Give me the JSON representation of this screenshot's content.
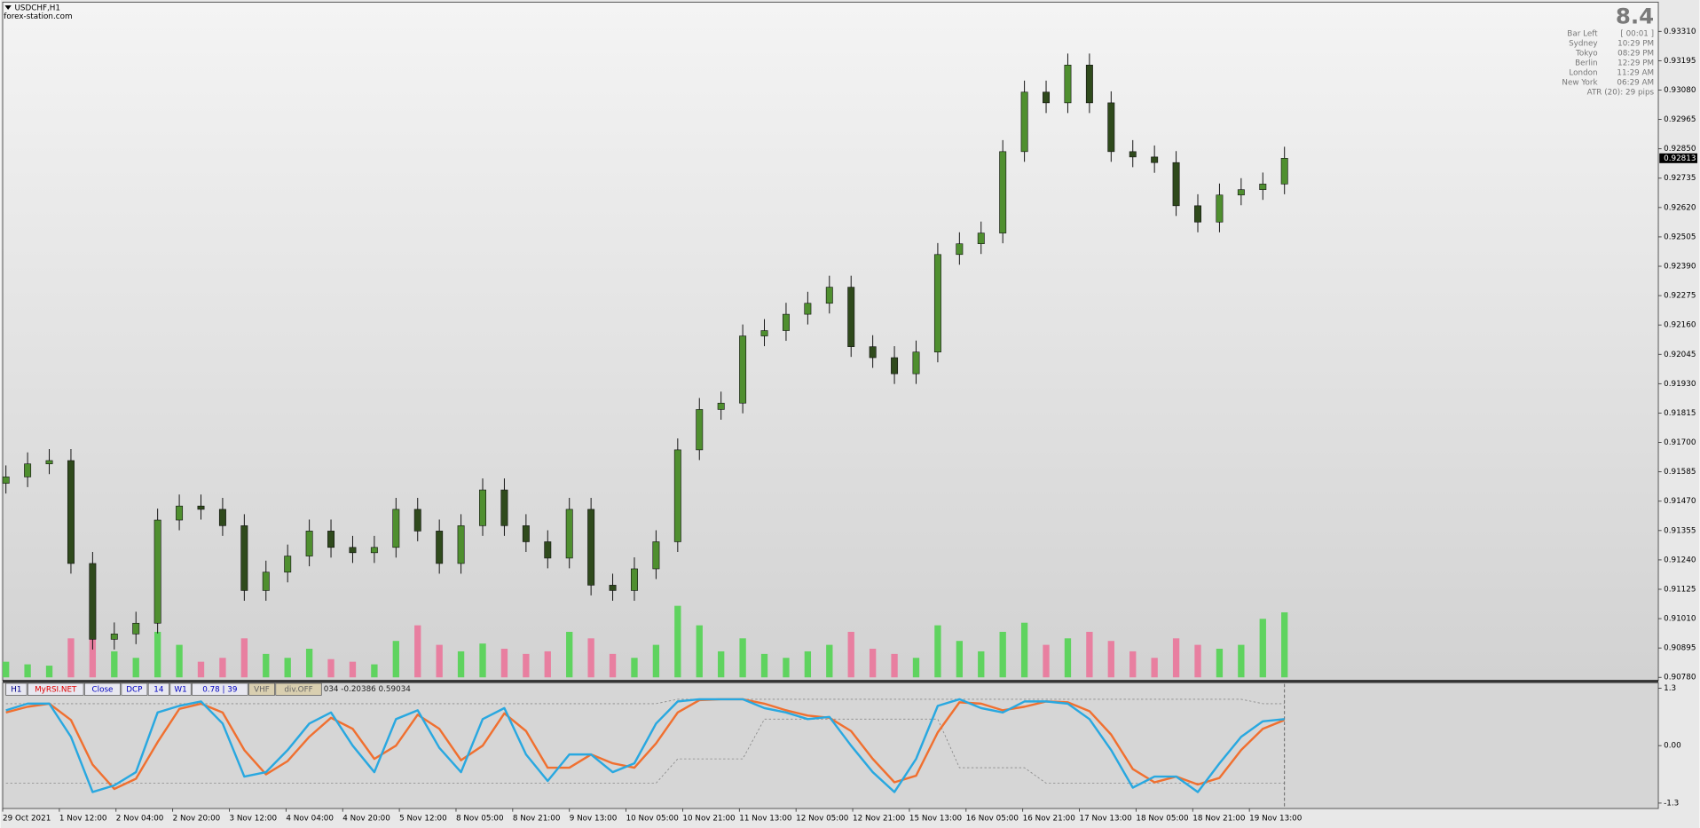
{
  "header": {
    "symbol": "USDCHF,H1",
    "site": "forex-station.com"
  },
  "info_panel": {
    "big_value": "8.4",
    "rows": [
      [
        "Bar Left",
        "[ 00:01 ]"
      ],
      [
        "Sydney",
        "10:29 PM"
      ],
      [
        "Tokyo",
        "08:29 PM"
      ],
      [
        "Berlin",
        "12:29 PM"
      ],
      [
        "London",
        "11:29 AM"
      ],
      [
        "New York",
        "06:29 AM"
      ]
    ],
    "atr": "ATR (20): 29 pips"
  },
  "indicator_bar": {
    "items": [
      "H1",
      "MyRSI.NET",
      "Close",
      "DCP",
      "14",
      "W1",
      "0.78 | 39",
      "VHF",
      "div.OFF"
    ],
    "readout": "034 -0.20386 0.59034"
  },
  "chart_data": [
    {
      "type": "candlestick",
      "up_color": "#4f8f2f",
      "down_color": "#2f4a1c",
      "volume_up_color": "#5fd35f",
      "volume_down_color": "#e87fa0",
      "ylim": [
        0.9078,
        0.9342
      ],
      "yticks": [
        {
          "value": 0.9331,
          "label": "0.93310"
        },
        {
          "value": 0.93195,
          "label": "0.93195"
        },
        {
          "value": 0.9308,
          "label": "0.93080"
        },
        {
          "value": 0.92965,
          "label": "0.92965"
        },
        {
          "value": 0.9285,
          "label": "0.92850"
        },
        {
          "value": 0.92735,
          "label": "0.92735"
        },
        {
          "value": 0.9262,
          "label": "0.92620"
        },
        {
          "value": 0.92505,
          "label": "0.92505"
        },
        {
          "value": 0.9239,
          "label": "0.92390"
        },
        {
          "value": 0.92275,
          "label": "0.92275"
        },
        {
          "value": 0.9216,
          "label": "0.92160"
        },
        {
          "value": 0.92045,
          "label": "0.92045"
        },
        {
          "value": 0.9193,
          "label": "0.91930"
        },
        {
          "value": 0.91815,
          "label": "0.91815"
        },
        {
          "value": 0.917,
          "label": "0.91700"
        },
        {
          "value": 0.91585,
          "label": "0.91585"
        },
        {
          "value": 0.9147,
          "label": "0.91470"
        },
        {
          "value": 0.91355,
          "label": "0.91355"
        },
        {
          "value": 0.9124,
          "label": "0.91240"
        },
        {
          "value": 0.91125,
          "label": "0.91125"
        },
        {
          "value": 0.9101,
          "label": "0.91010"
        },
        {
          "value": 0.90895,
          "label": "0.90895"
        },
        {
          "value": 0.9078,
          "label": "0.90780"
        }
      ],
      "open": [
        0.9154,
        0.91565,
        0.91616,
        0.91629,
        0.91226,
        0.90929,
        0.9095,
        0.90992,
        0.91396,
        0.91451,
        0.91438,
        0.91374,
        0.9112,
        0.91192,
        0.91255,
        0.91353,
        0.91289,
        0.91268,
        0.91289,
        0.91438,
        0.91353,
        0.91226,
        0.91374,
        0.91514,
        0.91374,
        0.91311,
        0.91247,
        0.91438,
        0.91141,
        0.9112,
        0.91205,
        0.91311,
        0.91671,
        0.91829,
        0.91854,
        0.92117,
        0.92138,
        0.92202,
        0.92245,
        0.92308,
        0.92075,
        0.92032,
        0.91969,
        0.92054,
        0.92436,
        0.92478,
        0.9252,
        0.92839,
        0.93072,
        0.9303,
        0.93178,
        0.9303,
        0.92839,
        0.92818,
        0.92796,
        0.92627,
        0.92563,
        0.92669,
        0.9269,
        0.92712
      ],
      "high": [
        0.9161,
        0.91661,
        0.91674,
        0.91674,
        0.91271,
        0.90995,
        0.91037,
        0.91441,
        0.91496,
        0.91496,
        0.91483,
        0.91419,
        0.91237,
        0.913,
        0.91398,
        0.91398,
        0.91334,
        0.91334,
        0.91483,
        0.91483,
        0.91398,
        0.91419,
        0.91559,
        0.91559,
        0.91419,
        0.91356,
        0.91483,
        0.91483,
        0.91186,
        0.9125,
        0.91356,
        0.91716,
        0.91874,
        0.91899,
        0.92162,
        0.92183,
        0.92247,
        0.9229,
        0.92353,
        0.92353,
        0.9212,
        0.92077,
        0.92099,
        0.92481,
        0.92523,
        0.92565,
        0.92884,
        0.93117,
        0.93117,
        0.93223,
        0.93223,
        0.93075,
        0.92884,
        0.92863,
        0.92841,
        0.92672,
        0.92714,
        0.92735,
        0.92757,
        0.92858
      ],
      "low": [
        0.915,
        0.91525,
        0.91576,
        0.91186,
        0.90889,
        0.90889,
        0.9091,
        0.90952,
        0.91356,
        0.91398,
        0.91334,
        0.9108,
        0.9108,
        0.91152,
        0.91215,
        0.91249,
        0.91228,
        0.91228,
        0.91249,
        0.91313,
        0.91186,
        0.91186,
        0.91334,
        0.91334,
        0.91271,
        0.91207,
        0.91207,
        0.91101,
        0.9108,
        0.9108,
        0.91165,
        0.91271,
        0.91631,
        0.91789,
        0.91814,
        0.92077,
        0.92098,
        0.92162,
        0.92205,
        0.92035,
        0.91992,
        0.91929,
        0.91929,
        0.92014,
        0.92396,
        0.92438,
        0.9248,
        0.92799,
        0.9299,
        0.9299,
        0.9299,
        0.92799,
        0.92778,
        0.92756,
        0.92587,
        0.92523,
        0.92523,
        0.92629,
        0.9265,
        0.92672
      ],
      "close": [
        0.91565,
        0.91616,
        0.91629,
        0.91226,
        0.90929,
        0.9095,
        0.90992,
        0.91396,
        0.91451,
        0.91438,
        0.91374,
        0.9112,
        0.91192,
        0.91255,
        0.91353,
        0.91289,
        0.91268,
        0.91289,
        0.91438,
        0.91353,
        0.91226,
        0.91374,
        0.91514,
        0.91374,
        0.91311,
        0.91247,
        0.91438,
        0.91141,
        0.9112,
        0.91205,
        0.91311,
        0.91671,
        0.91829,
        0.91854,
        0.92117,
        0.92138,
        0.92202,
        0.92245,
        0.92308,
        0.92075,
        0.92032,
        0.91969,
        0.92054,
        0.92436,
        0.92478,
        0.9252,
        0.92839,
        0.93072,
        0.9303,
        0.93178,
        0.9303,
        0.92839,
        0.92818,
        0.92796,
        0.92627,
        0.92563,
        0.92669,
        0.9269,
        0.92712,
        0.92813
      ],
      "volume": [
        12,
        10,
        9,
        30,
        38,
        20,
        15,
        35,
        25,
        12,
        15,
        30,
        18,
        15,
        22,
        14,
        12,
        10,
        28,
        40,
        25,
        20,
        26,
        22,
        18,
        20,
        35,
        30,
        18,
        15,
        25,
        55,
        40,
        20,
        30,
        18,
        15,
        20,
        25,
        35,
        22,
        18,
        15,
        40,
        28,
        20,
        35,
        42,
        25,
        30,
        35,
        28,
        20,
        15,
        30,
        25,
        22,
        25,
        45,
        50
      ]
    },
    {
      "type": "line",
      "ylim": [
        -1.3,
        1.3
      ],
      "yticks": [
        1.3,
        {
          "value": 0,
          "label": "0.00"
        },
        -1.3
      ],
      "x_tick_labels": [
        "29 Oct 2021",
        "1 Nov 12:00",
        "2 Nov 04:00",
        "2 Nov 20:00",
        "3 Nov 12:00",
        "4 Nov 04:00",
        "4 Nov 20:00",
        "5 Nov 12:00",
        "8 Nov 05:00",
        "8 Nov 21:00",
        "9 Nov 13:00",
        "10 Nov 05:00",
        "10 Nov 21:00",
        "11 Nov 13:00",
        "12 Nov 05:00",
        "12 Nov 21:00",
        "15 Nov 13:00",
        "16 Nov 05:00",
        "16 Nov 21:00",
        "17 Nov 13:00",
        "18 Nov 05:00",
        "18 Nov 21:00",
        "19 Nov 13:00"
      ],
      "series": [
        {
          "color": "#8a8a8a",
          "dashed": true,
          "values": [
            0.95,
            0.95,
            0.95,
            0.95,
            0.95,
            0.95,
            0.95,
            0.95,
            0.95,
            0.95,
            0.95,
            0.95,
            0.95,
            0.95,
            0.95,
            0.95,
            0.95,
            0.95,
            0.95,
            0.95,
            0.95,
            0.95,
            0.95,
            0.95,
            0.95,
            0.95,
            0.95,
            0.95,
            0.95,
            0.95,
            0.95,
            1.05,
            1.05,
            1.05,
            1.05,
            1.05,
            1.05,
            1.05,
            1.05,
            1.05,
            1.05,
            1.05,
            1.05,
            1.05,
            1.05,
            1.05,
            1.05,
            1.05,
            1.05,
            1.05,
            1.05,
            1.05,
            1.05,
            1.05,
            1.05,
            1.05,
            1.05,
            1.05,
            0.95,
            0.95
          ]
        },
        {
          "color": "#8a8a8a",
          "dashed": true,
          "values": [
            -0.85,
            -0.85,
            -0.85,
            -0.85,
            -0.85,
            -0.85,
            -0.85,
            -0.85,
            -0.85,
            -0.85,
            -0.85,
            -0.85,
            -0.85,
            -0.85,
            -0.85,
            -0.85,
            -0.85,
            -0.85,
            -0.85,
            -0.85,
            -0.85,
            -0.85,
            -0.85,
            -0.85,
            -0.85,
            -0.85,
            -0.85,
            -0.85,
            -0.85,
            -0.85,
            -0.85,
            -0.3,
            -0.3,
            -0.3,
            -0.3,
            0.6,
            0.6,
            0.6,
            0.6,
            0.6,
            0.6,
            0.6,
            0.6,
            0.6,
            -0.5,
            -0.5,
            -0.5,
            -0.5,
            -0.85,
            -0.85,
            -0.85,
            -0.85,
            -0.85,
            -0.85,
            -0.85,
            -0.85,
            -0.85,
            -0.85,
            -0.85,
            -0.85
          ]
        },
        {
          "color": "#f07030",
          "values": [
            0.75,
            0.88,
            0.95,
            0.58,
            -0.43,
            -0.98,
            -0.75,
            0.08,
            0.83,
            0.95,
            0.75,
            -0.1,
            -0.65,
            -0.35,
            0.2,
            0.63,
            0.38,
            -0.3,
            0,
            0.7,
            0.38,
            -0.33,
            0,
            0.73,
            0.33,
            -0.5,
            -0.5,
            -0.2,
            -0.4,
            -0.5,
            0.05,
            0.75,
            1.03,
            1.05,
            1.05,
            0.95,
            0.8,
            0.68,
            0.63,
            0.33,
            -0.3,
            -0.83,
            -0.68,
            0.3,
            0.98,
            0.95,
            0.8,
            0.88,
            1,
            0.98,
            0.78,
            0.25,
            -0.53,
            -0.83,
            -0.7,
            -0.88,
            -0.73,
            -0.1,
            0.38,
            0.58
          ]
        },
        {
          "color": "#29a8e0",
          "values": [
            0.8,
            0.95,
            0.95,
            0.2,
            -1.05,
            -0.9,
            -0.6,
            0.75,
            0.9,
            1,
            0.5,
            -0.7,
            -0.6,
            -0.1,
            0.5,
            0.75,
            0,
            -0.6,
            0.6,
            0.8,
            -0.05,
            -0.6,
            0.6,
            0.85,
            -0.2,
            -0.8,
            -0.2,
            -0.2,
            -0.6,
            -0.4,
            0.5,
            1,
            1.05,
            1.05,
            1.05,
            0.85,
            0.75,
            0.6,
            0.65,
            0,
            -0.6,
            -1.05,
            -0.3,
            0.9,
            1.05,
            0.85,
            0.75,
            1,
            1,
            0.95,
            0.6,
            -0.1,
            -0.95,
            -0.7,
            -0.7,
            -1.05,
            -0.4,
            0.2,
            0.55,
            0.6
          ]
        }
      ]
    }
  ]
}
